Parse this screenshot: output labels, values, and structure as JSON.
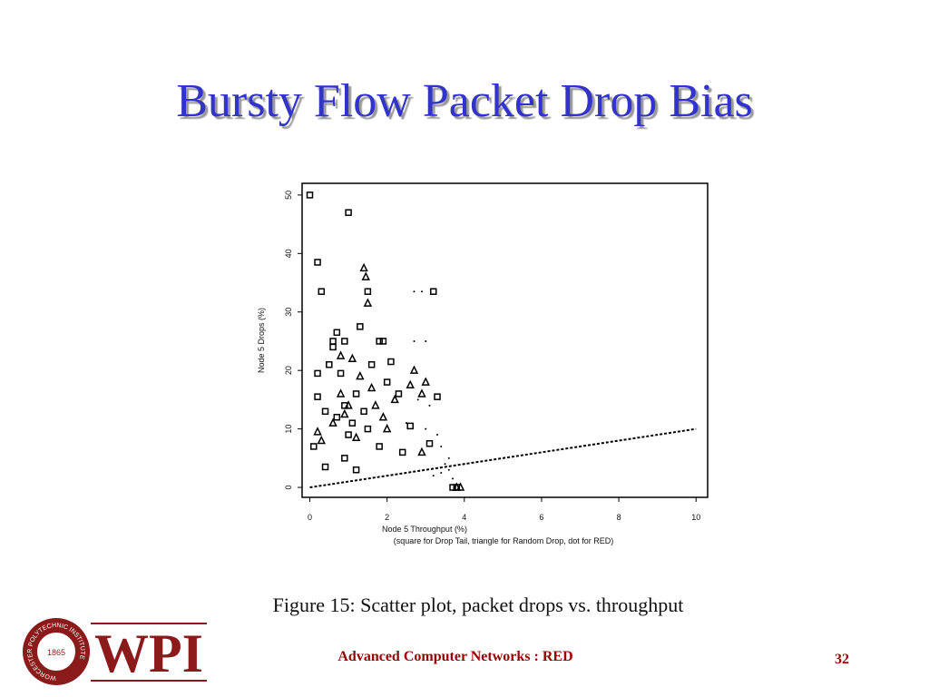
{
  "slide_title": "Bursty Flow Packet Drop Bias",
  "chart_data": {
    "type": "scatter",
    "xlabel": "Node 5 Throughput (%)",
    "annotation": "(square for Drop Tail, triangle for Random Drop, dot for RED)",
    "ylabel": "Node 5 Drops (%)",
    "xlim": [
      -0.2,
      10.3
    ],
    "ylim": [
      -1.7,
      52
    ],
    "xticks": [
      0,
      2,
      4,
      6,
      8,
      10
    ],
    "yticks": [
      0,
      10,
      20,
      30,
      40,
      50
    ],
    "series": [
      {
        "marker": "square",
        "color": "#000000",
        "x": [
          0,
          1,
          0.2,
          0.3,
          1.5,
          3.2,
          0.7,
          1.3,
          0.6,
          0.9,
          1.8,
          1.9,
          0.5,
          0.2,
          0.8,
          2.1,
          0.2,
          0.4,
          1.2,
          3.3,
          2.6,
          0.1,
          0.4,
          1.2,
          0.9,
          2.4,
          1.8,
          3.1,
          1.5,
          0.7,
          1.0,
          2.0,
          2.3,
          1.4,
          0.6,
          1.1,
          0.9,
          1.6,
          3.7,
          3.8
        ],
        "values": [
          50,
          47,
          38.5,
          33.5,
          33.5,
          33.5,
          26.5,
          27.5,
          25,
          25,
          25,
          25,
          21,
          19.5,
          19.5,
          21.5,
          15.5,
          13,
          16,
          15.5,
          10.5,
          7,
          3.5,
          3,
          5,
          6,
          7,
          7.5,
          10,
          12,
          9,
          18,
          16,
          13,
          24,
          11,
          14,
          21,
          0,
          0
        ]
      },
      {
        "marker": "triangle",
        "color": "#000000",
        "x": [
          1.4,
          1.45,
          1.5,
          0.8,
          1.1,
          2.7,
          3.0,
          2.9,
          0.2,
          0.3,
          0.8,
          1.6,
          2.2,
          1.3,
          1.9,
          2.6,
          1.0,
          2.9,
          3.8,
          3.9,
          0.6,
          1.7,
          1.2,
          0.9,
          2.0
        ],
        "values": [
          37.5,
          36,
          31.5,
          22.5,
          22,
          20,
          18,
          16,
          9.5,
          8,
          16,
          17,
          15,
          19,
          12,
          17.5,
          14,
          6,
          0,
          0,
          11,
          14,
          8.5,
          12.5,
          10
        ]
      },
      {
        "marker": "dot",
        "color": "#000000",
        "x": [
          2.7,
          2.9,
          2.7,
          3.0,
          2.8,
          3.1,
          3.3,
          3.4,
          3.5,
          3.6,
          3.2,
          3.6,
          3.0,
          2.5,
          3.4,
          3.7
        ],
        "values": [
          33.5,
          33.5,
          25,
          25,
          15,
          14,
          9,
          7,
          4,
          3,
          2,
          5,
          10,
          11,
          2.5,
          1.5
        ]
      },
      {
        "marker": "dashed-line",
        "color": "#000000",
        "x": [
          0,
          10
        ],
        "values": [
          0,
          10
        ]
      }
    ]
  },
  "caption": "Figure 15: Scatter plot, packet drops vs. throughput",
  "logo": {
    "text": "WPI",
    "seal": "WORCESTER POLYTECHNIC INSTITUTE",
    "year": "1865"
  },
  "footer": "Advanced Computer Networks : RED",
  "page_number": "32"
}
